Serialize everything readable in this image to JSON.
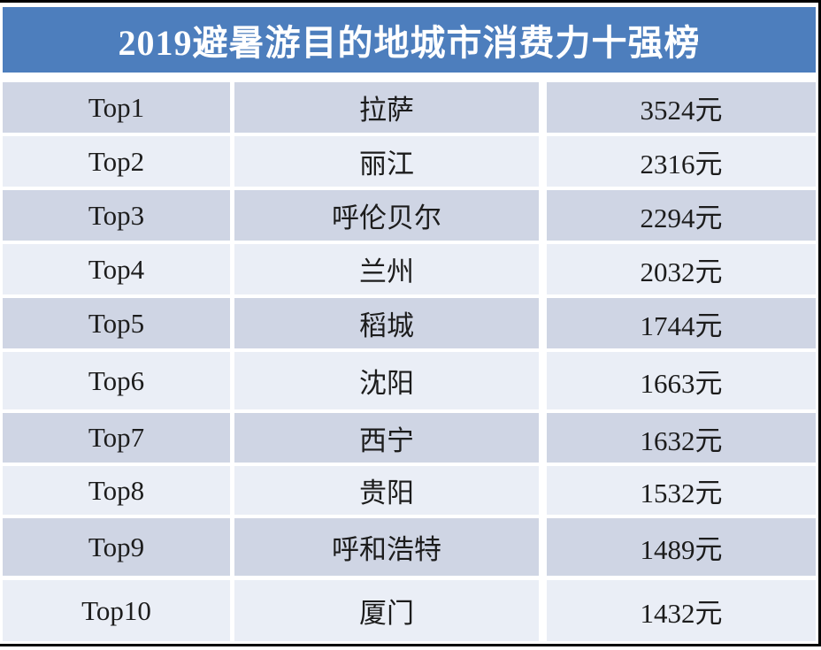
{
  "title": "2019避暑游目的地城市消费力十强榜",
  "colors": {
    "header_bg": "#4d7ebd",
    "row_dark": "#cfd5e4",
    "row_light": "#eaeef6",
    "frame_line": "#000000",
    "title_text": "#ffffff",
    "body_text": "#1c1c1c"
  },
  "rows": [
    {
      "rank": "Top1",
      "city": "拉萨",
      "value": "3524元"
    },
    {
      "rank": "Top2",
      "city": "丽江",
      "value": "2316元"
    },
    {
      "rank": "Top3",
      "city": "呼伦贝尔",
      "value": "2294元"
    },
    {
      "rank": "Top4",
      "city": "兰州",
      "value": "2032元"
    },
    {
      "rank": "Top5",
      "city": "稻城",
      "value": "1744元"
    },
    {
      "rank": "Top6",
      "city": "沈阳",
      "value": "1663元"
    },
    {
      "rank": "Top7",
      "city": "西宁",
      "value": "1632元"
    },
    {
      "rank": "Top8",
      "city": "贵阳",
      "value": "1532元"
    },
    {
      "rank": "Top9",
      "city": "呼和浩特",
      "value": "1489元"
    },
    {
      "rank": "Top10",
      "city": "厦门",
      "value": "1432元"
    }
  ],
  "chart_data": {
    "type": "table",
    "title": "2019避暑游目的地城市消费力十强榜",
    "rows": [
      [
        "Top1",
        "拉萨",
        "3524元"
      ],
      [
        "Top2",
        "丽江",
        "2316元"
      ],
      [
        "Top3",
        "呼伦贝尔",
        "2294元"
      ],
      [
        "Top4",
        "兰州",
        "2032元"
      ],
      [
        "Top5",
        "稻城",
        "1744元"
      ],
      [
        "Top6",
        "沈阳",
        "1663元"
      ],
      [
        "Top7",
        "西宁",
        "1632元"
      ],
      [
        "Top8",
        "贵阳",
        "1532元"
      ],
      [
        "Top9",
        "呼和浩特",
        "1489元"
      ],
      [
        "Top10",
        "厦门",
        "1432元"
      ]
    ],
    "cities": [
      "拉萨",
      "丽江",
      "呼伦贝尔",
      "兰州",
      "稻城",
      "沈阳",
      "西宁",
      "贵阳",
      "呼和浩特",
      "厦门"
    ],
    "values": [
      3524,
      2316,
      2294,
      2032,
      1744,
      1663,
      1632,
      1532,
      1489,
      1432
    ],
    "unit": "元"
  }
}
